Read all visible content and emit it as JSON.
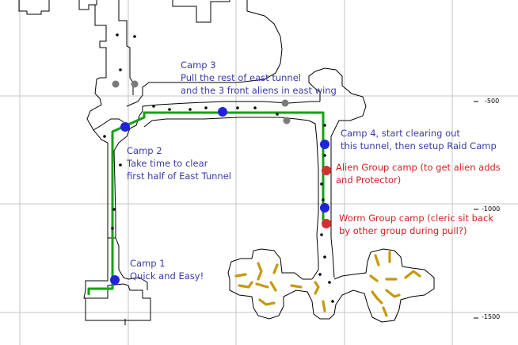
{
  "grid_labels": [
    "-500",
    "-1000",
    "-1500"
  ],
  "colors": {
    "route": "#12a312",
    "camp_marker": "#2222dd",
    "group_marker": "#d43030",
    "gray_marker": "#7a7a7a",
    "blue_text": "#3a3aa8",
    "red_text": "#d32020",
    "worms": "#c8980c",
    "walls": "#000000",
    "grid": "#c4c4c4"
  },
  "notes": [
    {
      "id": "camp3",
      "lines": [
        "Camp 3",
        "Pull the rest of east tunnel",
        "and the 3 front aliens in east wing"
      ]
    },
    {
      "id": "camp2",
      "lines": [
        "Camp 2",
        "Take time to clear",
        "first half of East Tunnel"
      ]
    },
    {
      "id": "camp4",
      "lines": [
        "Camp 4, start clearing out",
        "this tunnel, then setup Raid Camp"
      ]
    },
    {
      "id": "alien",
      "lines": [
        "Alien Group camp (to get alien adds",
        "and Protector)"
      ]
    },
    {
      "id": "worm",
      "lines": [
        "Worm Group camp (cleric sit back",
        "by other group during pull?)"
      ]
    },
    {
      "id": "camp1",
      "lines": [
        "Camp 1",
        "Quick and Easy!"
      ]
    }
  ]
}
